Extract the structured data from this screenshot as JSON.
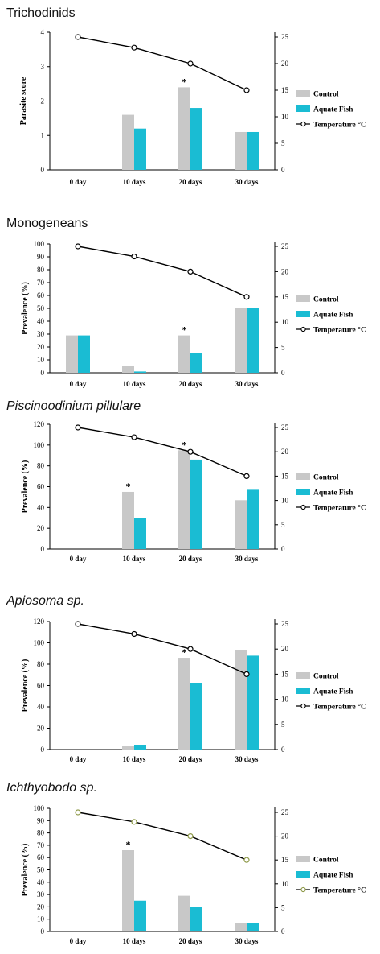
{
  "colors": {
    "control": "#c8c8c8",
    "aquate": "#1abcd3",
    "line": "#000000",
    "marker_fill": "#ffffff",
    "marker_stroke_default": "#000000",
    "marker_stroke_olive": "#8f9a4a"
  },
  "chart_data": [
    {
      "type": "bar",
      "title": "Trichodinids",
      "title_italic": false,
      "ylabel": "Parasite score",
      "categories": [
        "0 day",
        "10 days",
        "20 days",
        "30 days"
      ],
      "ylim": [
        0,
        4
      ],
      "yticks": [
        "0",
        "1",
        "2",
        "3",
        "4"
      ],
      "y2lim": [
        0,
        26
      ],
      "y2ticks": [
        "0",
        "5",
        "10",
        "15",
        "20",
        "25"
      ],
      "series": [
        {
          "name": "Control",
          "values": [
            null,
            1.6,
            2.4,
            1.1
          ]
        },
        {
          "name": "Aquate Fish",
          "values": [
            null,
            1.2,
            1.8,
            1.1
          ]
        },
        {
          "name": "Temperature °C",
          "kind": "line",
          "axis": "right",
          "values": [
            25,
            23,
            20,
            15
          ]
        }
      ],
      "annotations": [
        {
          "category": 2,
          "text": "*"
        }
      ],
      "grid": false,
      "legend": "right"
    },
    {
      "type": "bar",
      "title": "Monogeneans",
      "title_italic": false,
      "ylabel": "Prevalence (%)",
      "categories": [
        "0 day",
        "10 days",
        "20 days",
        "30 days"
      ],
      "ylim": [
        0,
        100
      ],
      "yticks": [
        "0",
        "10",
        "20",
        "30",
        "40",
        "50",
        "60",
        "70",
        "80",
        "90",
        "100"
      ],
      "y2lim": [
        0,
        26
      ],
      "y2ticks": [
        "0",
        "5",
        "10",
        "15",
        "20",
        "25"
      ],
      "series": [
        {
          "name": "Control",
          "values": [
            29,
            5,
            29,
            50
          ]
        },
        {
          "name": "Aquate Fish",
          "values": [
            29,
            1,
            15,
            50
          ]
        },
        {
          "name": "Temperature °C",
          "kind": "line",
          "axis": "right",
          "values": [
            25,
            23,
            20,
            15
          ]
        }
      ],
      "annotations": [
        {
          "category": 2,
          "text": "*"
        }
      ],
      "grid": false,
      "legend": "right"
    },
    {
      "type": "bar",
      "title": "Piscinoodinium pillulare",
      "title_italic": true,
      "ylabel": "Prevalence (%)",
      "categories": [
        "0 day",
        "10 days",
        "20 days",
        "30 days"
      ],
      "ylim": [
        0,
        120
      ],
      "yticks": [
        "0",
        "20",
        "40",
        "60",
        "80",
        "100",
        "120"
      ],
      "y2lim": [
        0,
        26
      ],
      "y2ticks": [
        "0",
        "5",
        "10",
        "15",
        "20",
        "25"
      ],
      "series": [
        {
          "name": "Control",
          "values": [
            null,
            55,
            95,
            47
          ]
        },
        {
          "name": "Aquate Fish",
          "values": [
            null,
            30,
            86,
            57
          ]
        },
        {
          "name": "Temperature °C",
          "kind": "line",
          "axis": "right",
          "values": [
            25,
            23,
            20,
            15
          ]
        }
      ],
      "annotations": [
        {
          "category": 1,
          "text": "*"
        },
        {
          "category": 2,
          "text": "*"
        }
      ],
      "grid": false,
      "legend": "right"
    },
    {
      "type": "bar",
      "title": "Apiosoma sp.",
      "title_italic": true,
      "ylabel": "Prevalence (%)",
      "categories": [
        "0 day",
        "10 days",
        "20 days",
        "30 days"
      ],
      "ylim": [
        0,
        120
      ],
      "yticks": [
        "0",
        "20",
        "40",
        "60",
        "80",
        "100",
        "120"
      ],
      "y2lim": [
        0,
        26
      ],
      "y2ticks": [
        "0",
        "5",
        "10",
        "15",
        "20",
        "25"
      ],
      "series": [
        {
          "name": "Control",
          "values": [
            null,
            3,
            86,
            93
          ]
        },
        {
          "name": "Aquate Fish",
          "values": [
            null,
            4,
            62,
            88
          ]
        },
        {
          "name": "Temperature °C",
          "kind": "line",
          "axis": "right",
          "values": [
            25,
            23,
            20,
            15
          ]
        }
      ],
      "annotations": [
        {
          "category": 2,
          "text": "*"
        }
      ],
      "grid": false,
      "legend": "right"
    },
    {
      "type": "bar",
      "title": "Ichthyobodo sp.",
      "title_italic": true,
      "ylabel": "Prevalence (%)",
      "categories": [
        "0 day",
        "10 days",
        "20 days",
        "30 days"
      ],
      "ylim": [
        0,
        100
      ],
      "yticks": [
        "0",
        "10",
        "20",
        "30",
        "40",
        "50",
        "60",
        "70",
        "80",
        "90",
        "100"
      ],
      "y2lim": [
        0,
        26
      ],
      "y2ticks": [
        "0",
        "5",
        "10",
        "15",
        "20",
        "25"
      ],
      "series": [
        {
          "name": "Control",
          "values": [
            null,
            66,
            29,
            7
          ]
        },
        {
          "name": "Aquate Fish",
          "values": [
            null,
            25,
            20,
            7
          ]
        },
        {
          "name": "Temperature °C",
          "kind": "line",
          "axis": "right",
          "values": [
            25,
            23,
            20,
            15
          ],
          "marker_color": "olive"
        }
      ],
      "annotations": [
        {
          "category": 1,
          "text": "*"
        }
      ],
      "grid": false,
      "legend": "right"
    }
  ]
}
